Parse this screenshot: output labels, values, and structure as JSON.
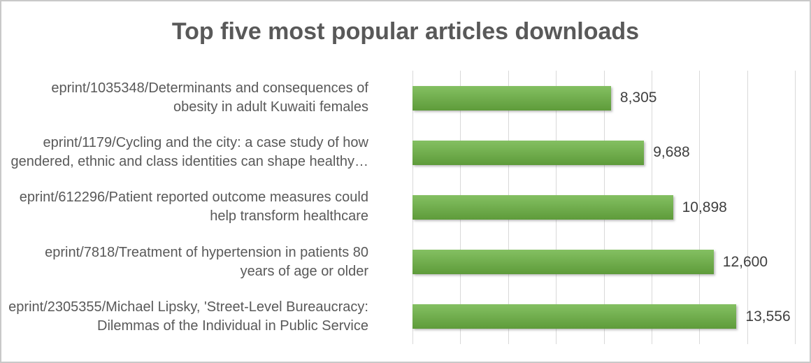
{
  "frame": {
    "border_color": "#c9c9c9",
    "background": "#ffffff"
  },
  "chart_data": {
    "type": "bar",
    "orientation": "horizontal",
    "title": "Top five most popular articles downloads",
    "categories": [
      "eprint/1035348/Determinants and consequences of obesity in adult Kuwaiti females",
      "eprint/1179/Cycling and the city: a case study of how gendered, ethnic and class identities can shape healthy…",
      "eprint/612296/Patient reported outcome measures could help transform healthcare",
      "eprint/7818/Treatment of hypertension in patients 80 years of age or older",
      "eprint/2305355/Michael Lipsky, 'Street-Level Bureaucracy: Dilemmas of the Individual in Public Service"
    ],
    "category_lines": [
      [
        "eprint/1035348/Determinants and consequences of",
        "obesity in adult Kuwaiti females"
      ],
      [
        "eprint/1179/Cycling and the city: a case study of how",
        "gendered, ethnic and class identities can shape healthy…"
      ],
      [
        "eprint/612296/Patient reported outcome measures could",
        "help transform healthcare"
      ],
      [
        "eprint/7818/Treatment of hypertension in patients 80",
        "years of age or older"
      ],
      [
        "eprint/2305355/Michael Lipsky, 'Street-Level Bureaucracy:",
        "Dilemmas of the Individual in Public Service"
      ]
    ],
    "values": [
      8305,
      9688,
      10898,
      12600,
      13556
    ],
    "value_labels": [
      "8,305",
      "9,688",
      "10,898",
      "12,600",
      "13,556"
    ],
    "xlabel": "",
    "ylabel": "",
    "xlim": [
      0,
      16000
    ],
    "grid_step": 2000,
    "grid": true,
    "legend": false,
    "axis_tick_labels_visible": false,
    "colors": {
      "bar_fill": "#70ad47",
      "bar_gradient_top": "#84c062",
      "bar_gradient_bottom": "#5e9b3a",
      "gridline": "#d9d9d9",
      "title_text": "#595959",
      "category_text": "#595959",
      "value_text": "#3f3f3f"
    }
  }
}
